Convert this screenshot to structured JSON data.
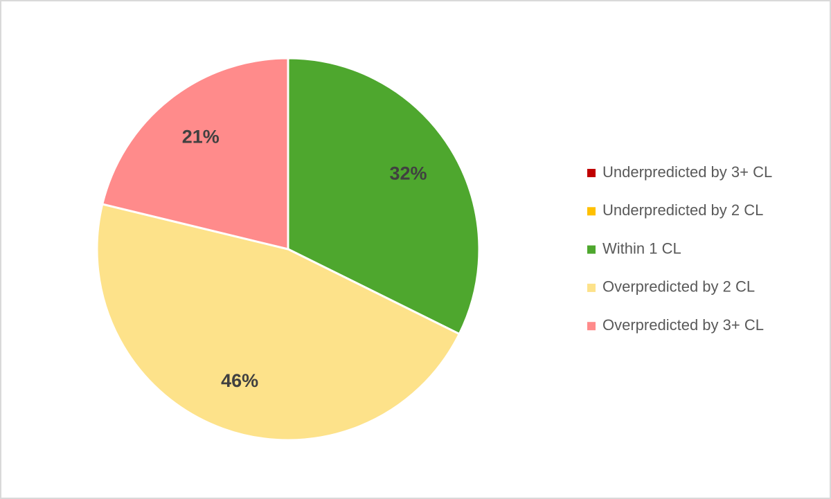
{
  "chart_data": {
    "type": "pie",
    "categories": [
      "Underpredicted by 3+ CL",
      "Underpredicted by 2 CL",
      "Within 1 CL",
      "Overpredicted by 2 CL",
      "Overpredicted by 3+ CL"
    ],
    "values": [
      0,
      0,
      32,
      46,
      21
    ],
    "value_labels": [
      null,
      null,
      "32%",
      "46%",
      "21%"
    ],
    "colors": [
      "#c00000",
      "#ffc000",
      "#4ea72e",
      "#fde28a",
      "#ff8b8b"
    ],
    "legend": "right"
  }
}
